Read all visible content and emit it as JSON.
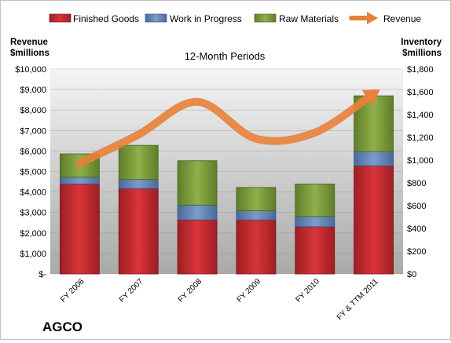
{
  "chart_data": {
    "type": "bar",
    "subtype": "stacked-bar-with-line",
    "title": "12-Month Periods",
    "company": "AGCO",
    "categories": [
      "FY 2006",
      "FY 2007",
      "FY 2008",
      "FY 2009",
      "FY 2010",
      "FY & TTM 2011"
    ],
    "left_axis": {
      "label_line1": "Revenue",
      "label_line2": "$millions",
      "range": [
        0,
        10000
      ],
      "ticks": [
        "$-",
        "$1,000",
        "$2,000",
        "$3,000",
        "$4,000",
        "$5,000",
        "$6,000",
        "$7,000",
        "$8,000",
        "$9,000",
        "$10,000"
      ]
    },
    "right_axis": {
      "label_line1": "Inventory",
      "label_line2": "$millions",
      "range": [
        0,
        1800
      ],
      "ticks": [
        "$0",
        "$200",
        "$400",
        "$600",
        "$800",
        "$1,000",
        "$1,200",
        "$1,400",
        "$1,600",
        "$1,800"
      ]
    },
    "series": [
      {
        "name": "Finished Goods",
        "axis": "right",
        "color": "#c0282d",
        "values": [
          790,
          750,
          475,
          475,
          415,
          950
        ]
      },
      {
        "name": "Work in Progress",
        "axis": "right",
        "color": "#5b7fb5",
        "values": [
          60,
          80,
          130,
          80,
          90,
          125
        ]
      },
      {
        "name": "Raw Materials",
        "axis": "right",
        "color": "#7a9a3a",
        "values": [
          205,
          300,
          390,
          205,
          285,
          490
        ]
      }
    ],
    "line_series": {
      "name": "Revenue",
      "axis": "left",
      "color": "#e8813a",
      "values": [
        5400,
        6800,
        8400,
        6600,
        6900,
        8800
      ]
    },
    "grid": true,
    "legend_position": "top"
  }
}
